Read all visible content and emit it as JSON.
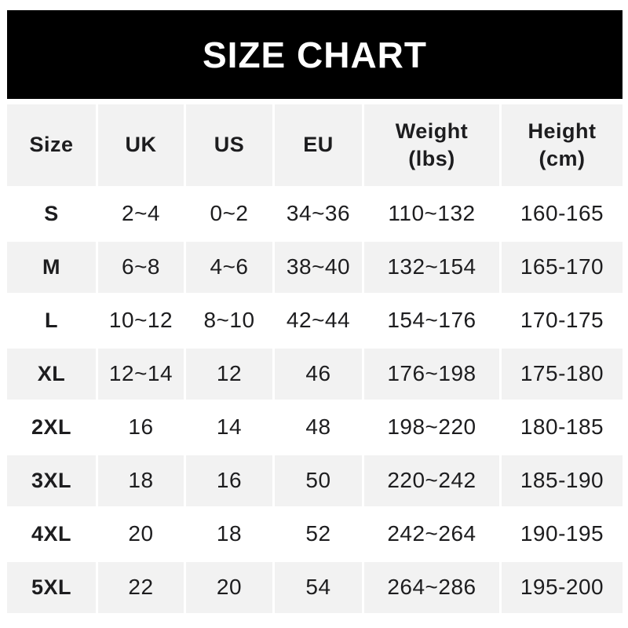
{
  "banner": {
    "title": "SIZE CHART",
    "bg_color": "#000000",
    "text_color": "#ffffff"
  },
  "table": {
    "stripe_color": "#f2f2f2",
    "text_color": "#1d1d1f",
    "headers": [
      {
        "line1": "Size"
      },
      {
        "line1": "UK"
      },
      {
        "line1": "US"
      },
      {
        "line1": "EU"
      },
      {
        "line1": "Weight",
        "line2": "(lbs)"
      },
      {
        "line1": "Height",
        "line2": "(cm)"
      }
    ]
  },
  "chart_data": {
    "type": "table",
    "title": "SIZE CHART",
    "columns": [
      "Size",
      "UK",
      "US",
      "EU",
      "Weight (lbs)",
      "Height (cm)"
    ],
    "rows": [
      [
        "S",
        "2~4",
        "0~2",
        "34~36",
        "110~132",
        "160-165"
      ],
      [
        "M",
        "6~8",
        "4~6",
        "38~40",
        "132~154",
        "165-170"
      ],
      [
        "L",
        "10~12",
        "8~10",
        "42~44",
        "154~176",
        "170-175"
      ],
      [
        "XL",
        "12~14",
        "12",
        "46",
        "176~198",
        "175-180"
      ],
      [
        "2XL",
        "16",
        "14",
        "48",
        "198~220",
        "180-185"
      ],
      [
        "3XL",
        "18",
        "16",
        "50",
        "220~242",
        "185-190"
      ],
      [
        "4XL",
        "20",
        "18",
        "52",
        "242~264",
        "190-195"
      ],
      [
        "5XL",
        "22",
        "20",
        "54",
        "264~286",
        "195-200"
      ]
    ]
  }
}
